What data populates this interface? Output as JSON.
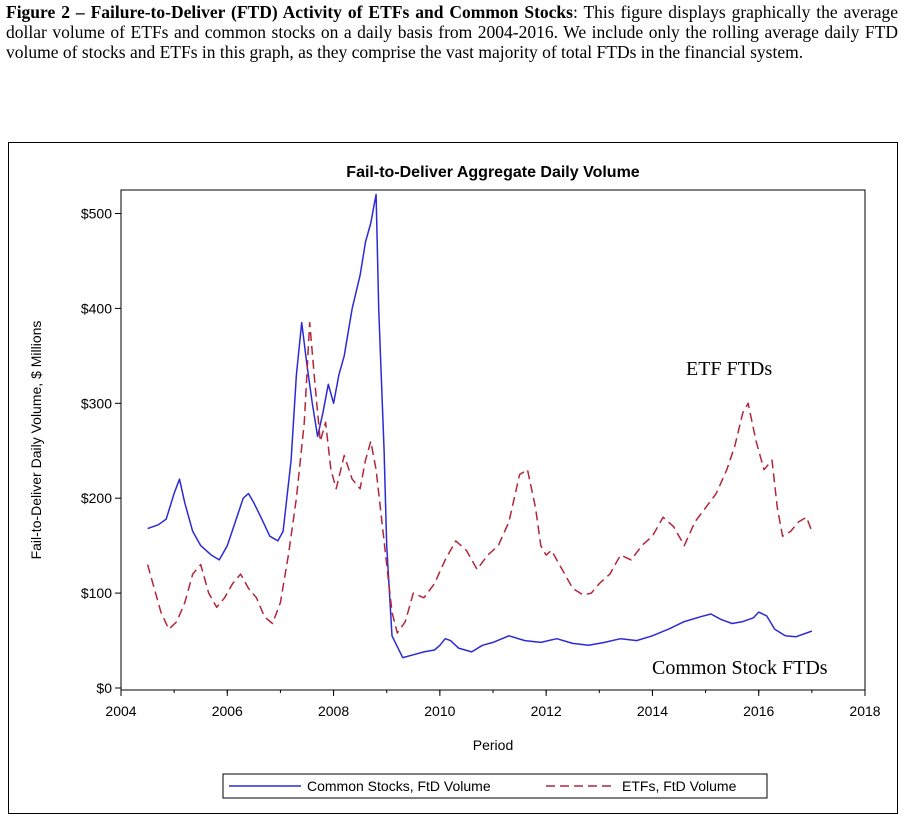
{
  "caption": {
    "label": "Figure 2 – Failure-to-Deliver (FTD) Activity of ETFs and Common Stocks",
    "text": ": This figure displays graphically the average dollar volume of ETFs and common stocks on a daily basis from 2004-2016.   We include only the rolling average daily FTD volume of stocks and ETFs in this graph, as they comprise the vast majority of total FTDs in the financial system."
  },
  "colors": {
    "stocks": "#2b2bd6",
    "etfs": "#b3263a"
  },
  "chart_data": {
    "type": "line",
    "title": "Fail-to-Deliver Aggregate Daily Volume",
    "xlabel": "Period",
    "ylabel": "Fail-to-Deliver Daily Volume, $ Millions",
    "xlim": [
      2004,
      2018
    ],
    "ylim": [
      0,
      520
    ],
    "x_ticks": [
      "2004",
      "2006",
      "2008",
      "2010",
      "2012",
      "2014",
      "2016",
      "2018"
    ],
    "y_ticks": [
      "$0",
      "$100",
      "$200",
      "$300",
      "$400",
      "$500"
    ],
    "annotations": [
      "ETF FTDs",
      "Common Stock FTDs"
    ],
    "legend_position": "bottom",
    "series": [
      {
        "name": "Common Stocks, FtD Volume",
        "style": "solid",
        "x": [
          2004.5,
          2004.7,
          2004.85,
          2005.0,
          2005.1,
          2005.2,
          2005.35,
          2005.5,
          2005.7,
          2005.85,
          2006.0,
          2006.15,
          2006.3,
          2006.4,
          2006.5,
          2006.65,
          2006.8,
          2006.95,
          2007.05,
          2007.2,
          2007.3,
          2007.4,
          2007.5,
          2007.6,
          2007.7,
          2007.8,
          2007.9,
          2008.0,
          2008.1,
          2008.2,
          2008.35,
          2008.5,
          2008.6,
          2008.7,
          2008.75,
          2008.8,
          2008.85,
          2008.95,
          2009.0,
          2009.1,
          2009.3,
          2009.5,
          2009.7,
          2009.9,
          2010.0,
          2010.1,
          2010.2,
          2010.35,
          2010.6,
          2010.8,
          2011.0,
          2011.3,
          2011.6,
          2011.9,
          2012.2,
          2012.5,
          2012.8,
          2013.1,
          2013.4,
          2013.7,
          2014.0,
          2014.3,
          2014.6,
          2014.9,
          2015.1,
          2015.3,
          2015.5,
          2015.7,
          2015.9,
          2016.0,
          2016.15,
          2016.3,
          2016.5,
          2016.7,
          2016.9,
          2017.0
        ],
        "values": [
          168,
          172,
          178,
          205,
          220,
          195,
          165,
          150,
          140,
          135,
          150,
          175,
          200,
          205,
          195,
          178,
          160,
          155,
          165,
          240,
          330,
          385,
          340,
          300,
          265,
          290,
          320,
          300,
          330,
          350,
          400,
          435,
          470,
          490,
          505,
          520,
          400,
          250,
          150,
          55,
          32,
          35,
          38,
          40,
          45,
          52,
          50,
          42,
          38,
          45,
          48,
          55,
          50,
          48,
          52,
          47,
          45,
          48,
          52,
          50,
          55,
          62,
          70,
          75,
          78,
          72,
          68,
          70,
          74,
          80,
          76,
          62,
          55,
          54,
          58,
          60
        ]
      },
      {
        "name": "ETFs, FtD Volume",
        "style": "dashed",
        "x": [
          2004.5,
          2004.6,
          2004.75,
          2004.9,
          2005.05,
          2005.2,
          2005.35,
          2005.5,
          2005.65,
          2005.8,
          2005.95,
          2006.1,
          2006.25,
          2006.4,
          2006.55,
          2006.7,
          2006.85,
          2007.0,
          2007.15,
          2007.3,
          2007.45,
          2007.55,
          2007.65,
          2007.75,
          2007.85,
          2007.95,
          2008.05,
          2008.2,
          2008.35,
          2008.5,
          2008.6,
          2008.7,
          2008.8,
          2008.9,
          2009.0,
          2009.1,
          2009.2,
          2009.35,
          2009.5,
          2009.7,
          2009.9,
          2010.1,
          2010.3,
          2010.5,
          2010.7,
          2010.9,
          2011.1,
          2011.3,
          2011.5,
          2011.65,
          2011.8,
          2011.9,
          2012.0,
          2012.1,
          2012.3,
          2012.5,
          2012.7,
          2012.85,
          2013.0,
          2013.2,
          2013.4,
          2013.6,
          2013.8,
          2014.0,
          2014.2,
          2014.4,
          2014.6,
          2014.8,
          2015.0,
          2015.2,
          2015.4,
          2015.55,
          2015.7,
          2015.8,
          2015.95,
          2016.1,
          2016.25,
          2016.35,
          2016.45,
          2016.6,
          2016.75,
          2016.9,
          2017.0
        ],
        "values": [
          130,
          110,
          80,
          62,
          70,
          90,
          120,
          130,
          100,
          85,
          95,
          110,
          120,
          105,
          95,
          75,
          68,
          90,
          140,
          200,
          280,
          385,
          320,
          260,
          280,
          230,
          210,
          245,
          220,
          210,
          240,
          260,
          230,
          180,
          130,
          80,
          58,
          70,
          100,
          95,
          110,
          135,
          155,
          145,
          125,
          140,
          150,
          175,
          225,
          230,
          190,
          150,
          140,
          145,
          125,
          105,
          98,
          100,
          110,
          120,
          140,
          135,
          150,
          160,
          180,
          170,
          150,
          175,
          190,
          205,
          230,
          255,
          290,
          300,
          260,
          230,
          240,
          190,
          160,
          165,
          175,
          180,
          165
        ]
      }
    ]
  }
}
